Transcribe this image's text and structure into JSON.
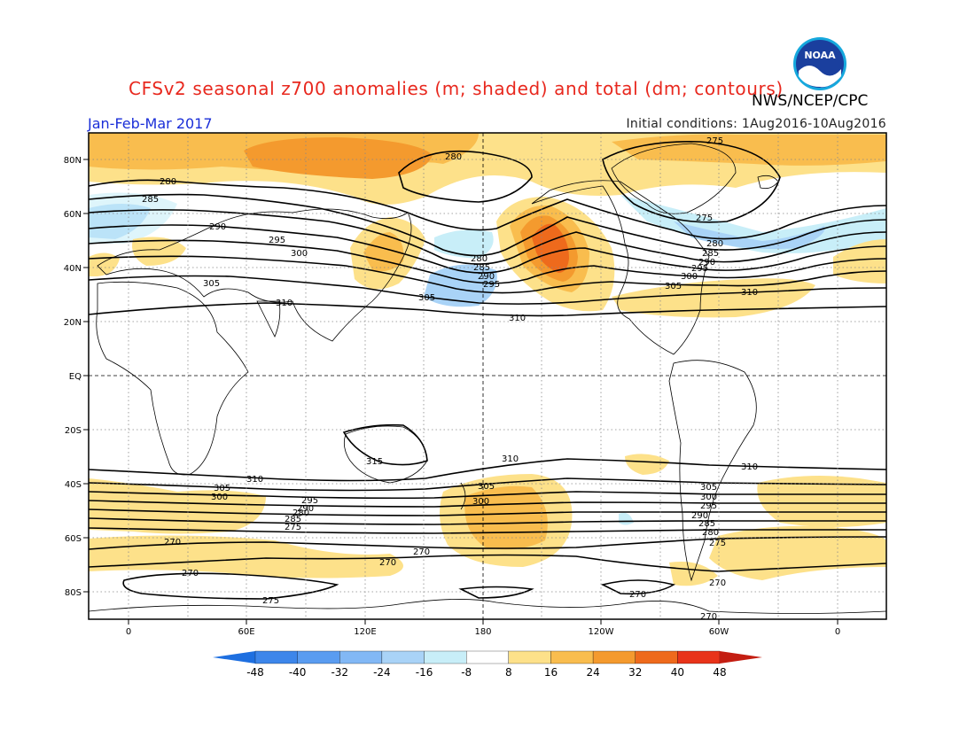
{
  "title": "CFSv2 seasonal z700 anomalies (m; shaded) and total (dm; contours)",
  "agency": "NWS/NCEP/CPC",
  "period": "Jan-Feb-Mar 2017",
  "initial_conditions": "Initial conditions: 1Aug2016-10Aug2016",
  "logo_text": "NOAA",
  "lat_labels": [
    "80N",
    "60N",
    "40N",
    "20N",
    "EQ",
    "20S",
    "40S",
    "60S",
    "80S"
  ],
  "lon_labels": [
    "0",
    "60E",
    "120E",
    "180",
    "120W",
    "60W",
    "0"
  ],
  "contour_labels": [
    "275",
    "280",
    "285",
    "290",
    "295",
    "300",
    "305",
    "310",
    "315",
    "270"
  ],
  "colorbar": {
    "labels": [
      "-48",
      "-40",
      "-32",
      "-24",
      "-16",
      "-8",
      "8",
      "16",
      "24",
      "32",
      "40",
      "48"
    ],
    "colors": [
      "#1e6fe0",
      "#3d86ea",
      "#5a9cf0",
      "#82b8f5",
      "#a9d3f7",
      "#c8eef8",
      "#ffffff",
      "#fde18a",
      "#f9bd4e",
      "#f49a2e",
      "#ee6a1c",
      "#e8341a",
      "#c41e12"
    ]
  }
}
